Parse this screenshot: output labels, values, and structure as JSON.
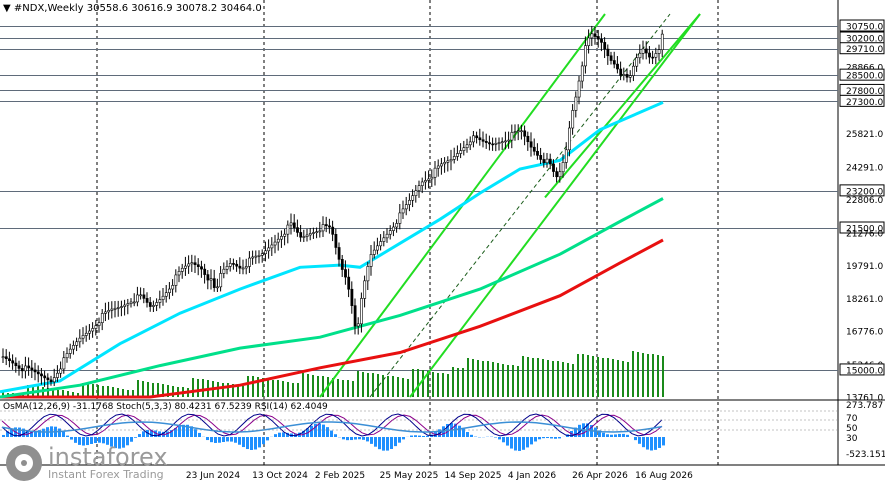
{
  "header": {
    "symbol": "#NDX,Weekly",
    "ohlc": "30558.6 30616.9 30078.2 30464.0"
  },
  "indicator_label": "OsMA(12,26,9) -31.1768 Stoch(5,3,3) 80.4231 67.5239 RSI(14) 62.4049",
  "brand": {
    "name": "instaforex",
    "tagline": "Instant Forex Trading"
  },
  "colors": {
    "bull": "#ffffff",
    "bear": "#000000",
    "ema_fast": "#00e5ff",
    "ema_mid": "#00e08a",
    "ema_slow": "#e81010",
    "channel": "#22dd22",
    "volume": "#1a8a1a",
    "osma": "#1e90ff",
    "stoch_main": "#00008b",
    "stoch_signal": "#8b008b",
    "rsi": "#3b8fd6"
  },
  "chart_data": {
    "type": "candlestick",
    "price_axis": {
      "min": 13761,
      "max": 31300
    },
    "price_ticks": [
      "30750.0",
      "30200.0",
      "29710.0",
      "28866.0",
      "28500.0",
      "27800.0",
      "27300.0",
      "25821.0",
      "24291.0",
      "23200.0",
      "22806.0",
      "21500.0",
      "21276.0",
      "19791.0",
      "18261.0",
      "16776.0",
      "15246.0",
      "15000.0",
      "13761.0"
    ],
    "levels": [
      30750.0,
      30200.0,
      29710.0,
      28500.0,
      27800.0,
      27300.0,
      23200.0,
      21500.0,
      15000.0
    ],
    "date_ticks": [
      "23 Jun 2024",
      "13 Oct 2024",
      "2 Feb 2025",
      "25 May 2025",
      "14 Sep 2025",
      "4 Jan 2026",
      "26 Apr 2026",
      "16 Aug 2026"
    ],
    "close_path": [
      [
        0,
        15600
      ],
      [
        10,
        15400
      ],
      [
        20,
        15100
      ],
      [
        30,
        14900
      ],
      [
        40,
        14700
      ],
      [
        50,
        14500
      ],
      [
        60,
        15200
      ],
      [
        70,
        15900
      ],
      [
        80,
        16500
      ],
      [
        90,
        16900
      ],
      [
        100,
        17400
      ],
      [
        110,
        17700
      ],
      [
        120,
        17900
      ],
      [
        130,
        18200
      ],
      [
        140,
        18300
      ],
      [
        150,
        17800
      ],
      [
        160,
        18300
      ],
      [
        170,
        18900
      ],
      [
        180,
        19500
      ],
      [
        190,
        19900
      ],
      [
        200,
        19700
      ],
      [
        210,
        19000
      ],
      [
        215,
        18400
      ],
      [
        220,
        19400
      ],
      [
        230,
        19900
      ],
      [
        240,
        19700
      ],
      [
        250,
        20000
      ],
      [
        260,
        20200
      ],
      [
        270,
        20700
      ],
      [
        280,
        21200
      ],
      [
        290,
        21600
      ],
      [
        300,
        21000
      ],
      [
        310,
        21300
      ],
      [
        320,
        21500
      ],
      [
        330,
        21400
      ],
      [
        335,
        20500
      ],
      [
        340,
        19700
      ],
      [
        345,
        19200
      ],
      [
        350,
        18300
      ],
      [
        353,
        17200
      ],
      [
        356,
        16900
      ],
      [
        360,
        18000
      ],
      [
        365,
        19300
      ],
      [
        370,
        20200
      ],
      [
        380,
        20900
      ],
      [
        390,
        21500
      ],
      [
        400,
        22100
      ],
      [
        410,
        22800
      ],
      [
        420,
        23600
      ],
      [
        430,
        23900
      ],
      [
        440,
        24300
      ],
      [
        450,
        24600
      ],
      [
        460,
        25100
      ],
      [
        470,
        25600
      ],
      [
        480,
        25400
      ],
      [
        490,
        25300
      ],
      [
        500,
        25500
      ],
      [
        510,
        25700
      ],
      [
        520,
        25900
      ],
      [
        530,
        25200
      ],
      [
        540,
        24700
      ],
      [
        548,
        24400
      ],
      [
        555,
        23700
      ],
      [
        560,
        24100
      ],
      [
        565,
        25000
      ],
      [
        570,
        26600
      ],
      [
        575,
        27600
      ],
      [
        580,
        28800
      ],
      [
        585,
        29800
      ],
      [
        590,
        30300
      ],
      [
        600,
        30000
      ],
      [
        608,
        29300
      ],
      [
        615,
        29000
      ],
      [
        622,
        28400
      ],
      [
        628,
        28200
      ],
      [
        635,
        29200
      ],
      [
        642,
        29700
      ],
      [
        650,
        29300
      ],
      [
        658,
        29800
      ],
      [
        663,
        30464
      ]
    ],
    "ema_fast": [
      [
        0,
        14000
      ],
      [
        60,
        14500
      ],
      [
        120,
        16200
      ],
      [
        180,
        17600
      ],
      [
        240,
        18700
      ],
      [
        300,
        19700
      ],
      [
        340,
        19800
      ],
      [
        360,
        19700
      ],
      [
        400,
        20800
      ],
      [
        440,
        21900
      ],
      [
        480,
        23100
      ],
      [
        520,
        24200
      ],
      [
        560,
        24600
      ],
      [
        600,
        26000
      ],
      [
        663,
        27250
      ]
    ],
    "ema_mid": [
      [
        0,
        13761
      ],
      [
        80,
        14300
      ],
      [
        160,
        15200
      ],
      [
        240,
        16000
      ],
      [
        320,
        16500
      ],
      [
        400,
        17500
      ],
      [
        480,
        18700
      ],
      [
        560,
        20300
      ],
      [
        620,
        21800
      ],
      [
        663,
        22850
      ]
    ],
    "ema_slow": [
      [
        0,
        13761
      ],
      [
        150,
        13761
      ],
      [
        240,
        14300
      ],
      [
        320,
        15100
      ],
      [
        400,
        15800
      ],
      [
        480,
        17000
      ],
      [
        560,
        18400
      ],
      [
        620,
        19900
      ],
      [
        663,
        20950
      ]
    ],
    "channels": [
      {
        "from": [
          320,
          13761
        ],
        "to": [
          605,
          31300
        ]
      },
      {
        "from": [
          410,
          13761
        ],
        "to": [
          700,
          31300
        ]
      },
      {
        "from": [
          545,
          22900
        ],
        "to": [
          700,
          31300
        ]
      }
    ],
    "indicator_axis": {
      "ticks": [
        "273.787",
        "70",
        "50",
        "30",
        "-523.151"
      ]
    }
  }
}
